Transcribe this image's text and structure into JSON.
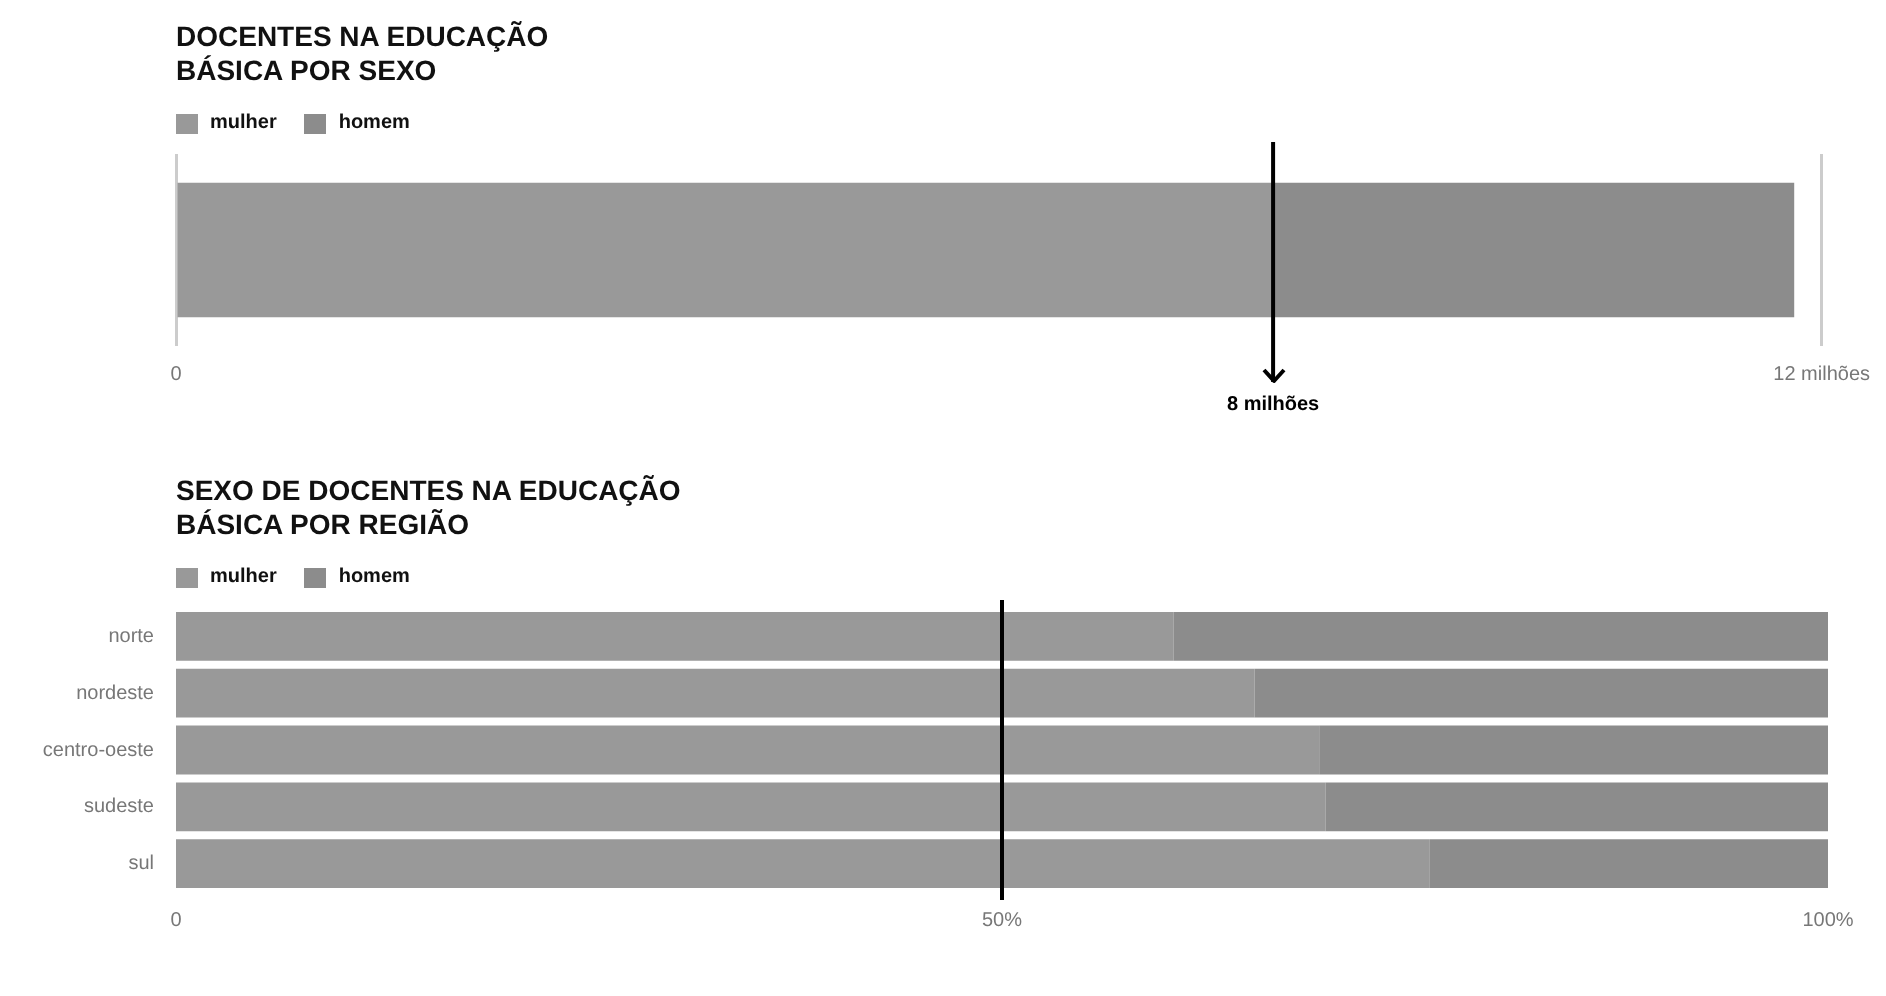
{
  "chart_data": [
    {
      "type": "bar",
      "title": "DOCENTES NA EDUCAÇÃO\nBÁSICA POR SEXO",
      "orientation": "horizontal",
      "stacked": true,
      "categories": [
        null
      ],
      "series": [
        {
          "name": "mulher",
          "color": "#999999",
          "values": [
            8.0
          ]
        },
        {
          "name": "homem",
          "color": "#8c8c8c",
          "values": [
            3.8
          ]
        }
      ],
      "xlim": [
        0,
        12
      ],
      "xticks": [
        0,
        {
          "value": 12,
          "label": "12 milhões"
        }
      ],
      "grid": "x",
      "legend": "top left",
      "ref_lines": [
        {
          "axis": "x",
          "value": 8,
          "label": "8 milhões",
          "color": "#000000"
        }
      ]
    },
    {
      "type": "bar",
      "title": "SEXO DE DOCENTES NA EDUCAÇÃO\nBÁSICA POR REGIÃO",
      "orientation": "horizontal",
      "stacked": true,
      "categories": [
        "norte",
        "nordeste",
        "centro-oeste",
        "sudeste",
        "sul"
      ],
      "series": [
        {
          "name": "mulher",
          "color": "#999999",
          "values": [
            60.4,
            65.3,
            69.2,
            69.6,
            75.9
          ]
        },
        {
          "name": "homem",
          "color": "#8c8c8c",
          "values": [
            39.6,
            34.7,
            30.8,
            30.4,
            24.1
          ]
        }
      ],
      "xlim": [
        0,
        100
      ],
      "xticks": [
        0,
        {
          "value": 50,
          "label": "50%"
        },
        {
          "value": 100,
          "label": "100%"
        }
      ],
      "legend": "top left",
      "ref_lines": [
        {
          "axis": "x",
          "value": 50,
          "color": "#000000"
        }
      ]
    }
  ]
}
